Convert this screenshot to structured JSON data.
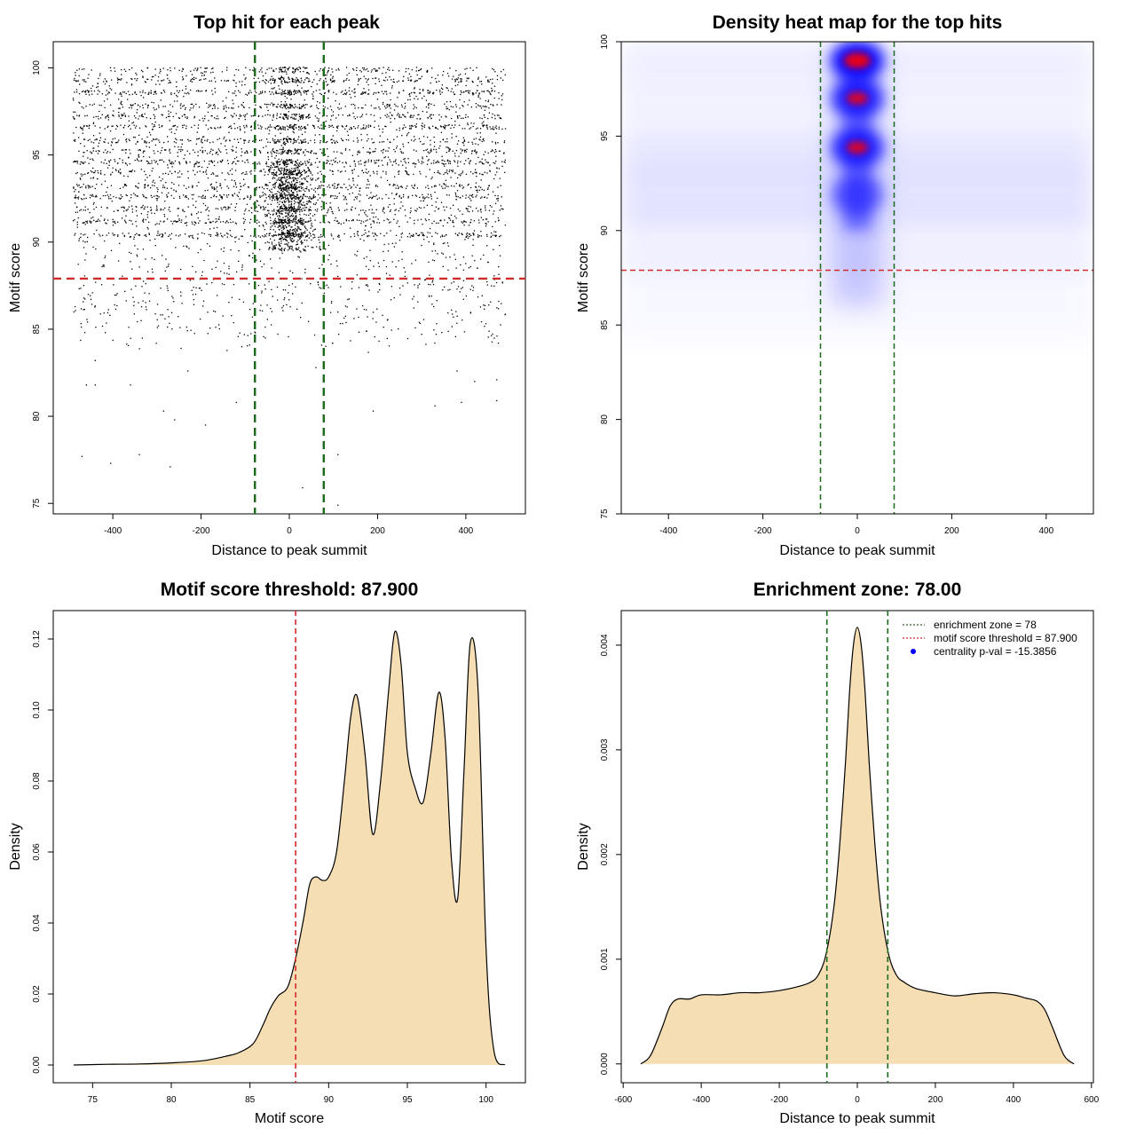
{
  "chart_data": [
    {
      "type": "scatter",
      "title": "Top hit for each peak",
      "xlabel": "Distance to peak summit",
      "ylabel": "Motif score",
      "xlim": [
        -535,
        535
      ],
      "ylim": [
        74.4,
        101.5
      ],
      "xticks": [
        -400,
        -200,
        0,
        200,
        400
      ],
      "yticks": [
        75,
        80,
        85,
        90,
        95,
        100
      ],
      "xtick_labels": [
        "-400",
        "-200",
        "0",
        "200",
        "400"
      ],
      "ytick_labels": [
        "75",
        "80",
        "85",
        "90",
        "95",
        "100"
      ],
      "score_levels": [
        99.9,
        99.3,
        98.6,
        97.8,
        97.2,
        96.6,
        95.8,
        95.2,
        94.6,
        94.0,
        93.2,
        92.6,
        91.9,
        91.2,
        90.4
      ],
      "density_peaks_x": 0,
      "x_range_points": [
        -490,
        490
      ],
      "sparse_points": [
        {
          "x": -470,
          "y": 77.7
        },
        {
          "x": -340,
          "y": 77.8
        },
        {
          "x": -405,
          "y": 77.3
        },
        {
          "x": -270,
          "y": 77.1
        },
        {
          "x": 30,
          "y": 75.9
        },
        {
          "x": 110,
          "y": 77.8
        },
        {
          "x": 110,
          "y": 74.9
        },
        {
          "x": -460,
          "y": 81.8
        },
        {
          "x": -440,
          "y": 81.8
        },
        {
          "x": -285,
          "y": 80.3
        },
        {
          "x": -260,
          "y": 79.8
        },
        {
          "x": -190,
          "y": 79.5
        },
        {
          "x": -120,
          "y": 80.8
        },
        {
          "x": 190,
          "y": 80.3
        },
        {
          "x": 330,
          "y": 80.6
        },
        {
          "x": 390,
          "y": 80.8
        },
        {
          "x": 470,
          "y": 80.9
        },
        {
          "x": -360,
          "y": 81.8
        },
        {
          "x": 420,
          "y": 82.0
        },
        {
          "x": 470,
          "y": 82.1
        },
        {
          "x": -440,
          "y": 83.2
        },
        {
          "x": 380,
          "y": 82.6
        },
        {
          "x": -230,
          "y": 82.6
        },
        {
          "x": 60,
          "y": 82.8
        }
      ],
      "hlines": [
        {
          "y": 87.9,
          "color": "#d22b2b"
        }
      ],
      "vlines": [
        {
          "x": -78,
          "color": "#1a6b1a"
        },
        {
          "x": 78,
          "color": "#1a6b1a"
        }
      ]
    },
    {
      "type": "heatmap",
      "title": "Density heat map for the top hits",
      "xlabel": "Distance to peak summit",
      "ylabel": "Motif score",
      "xlim": [
        -500,
        500
      ],
      "ylim": [
        75,
        100
      ],
      "xticks": [
        -400,
        -200,
        0,
        200,
        400
      ],
      "yticks": [
        75,
        80,
        85,
        90,
        95,
        100
      ],
      "xtick_labels": [
        "-400",
        "-200",
        "0",
        "200",
        "400"
      ],
      "ytick_labels": [
        "75",
        "80",
        "85",
        "90",
        "95",
        "100"
      ],
      "hotspots": [
        {
          "x": 0,
          "y": 99.0,
          "intensity": 1.0
        },
        {
          "x": 0,
          "y": 97.0,
          "intensity": 0.8
        },
        {
          "x": 0,
          "y": 94.4,
          "intensity": 0.8
        },
        {
          "x": 0,
          "y": 91.9,
          "intensity": 0.45
        }
      ],
      "colors": [
        "#ffffff",
        "#0000ff",
        "#ff0000"
      ],
      "hlines": [
        {
          "y": 87.9,
          "color": "#d22b2b"
        }
      ],
      "vlines": [
        {
          "x": -78,
          "color": "#1a6b1a"
        },
        {
          "x": 78,
          "color": "#1a6b1a"
        }
      ]
    },
    {
      "type": "area",
      "title": "Motif score threshold: 87.900",
      "xlabel": "Motif score",
      "ylabel": "Density",
      "xlim": [
        72.5,
        102.5
      ],
      "ylim": [
        -0.005,
        0.128
      ],
      "xticks": [
        75,
        80,
        85,
        90,
        95,
        100
      ],
      "yticks": [
        0.0,
        0.02,
        0.04,
        0.06,
        0.08,
        0.1,
        0.12
      ],
      "xtick_labels": [
        "75",
        "80",
        "85",
        "90",
        "95",
        "100"
      ],
      "ytick_labels": [
        "0.00",
        "0.02",
        "0.04",
        "0.06",
        "0.08",
        "0.10",
        "0.12"
      ],
      "x": [
        73.8,
        76,
        78,
        80,
        82,
        83.5,
        84.3,
        85.2,
        85.8,
        86.3,
        86.8,
        87.4,
        87.9,
        88.4,
        88.8,
        89.2,
        89.6,
        90.0,
        90.5,
        91.0,
        91.4,
        91.8,
        92.3,
        92.8,
        93.3,
        93.8,
        94.2,
        94.6,
        95.0,
        95.5,
        96.0,
        96.5,
        97.0,
        97.4,
        97.8,
        98.2,
        98.6,
        99.0,
        99.5,
        100.0,
        100.5,
        101.2
      ],
      "y": [
        0.0,
        0.0002,
        0.0003,
        0.0006,
        0.0012,
        0.0025,
        0.0035,
        0.006,
        0.011,
        0.016,
        0.0195,
        0.022,
        0.03,
        0.041,
        0.051,
        0.053,
        0.052,
        0.053,
        0.06,
        0.08,
        0.098,
        0.104,
        0.088,
        0.065,
        0.08,
        0.105,
        0.122,
        0.113,
        0.088,
        0.078,
        0.074,
        0.088,
        0.105,
        0.092,
        0.058,
        0.047,
        0.083,
        0.119,
        0.105,
        0.033,
        0.004,
        0.0
      ],
      "fill": "#f5deb3",
      "vlines": [
        {
          "x": 87.9,
          "color": "#d22b2b"
        }
      ]
    },
    {
      "type": "area",
      "title": "Enrichment zone: 78.00",
      "xlabel": "Distance to peak summit",
      "ylabel": "Density",
      "xlim": [
        -605,
        605
      ],
      "ylim": [
        -0.00018,
        0.00433
      ],
      "xticks": [
        -600,
        -400,
        -200,
        0,
        200,
        400,
        600
      ],
      "yticks": [
        0.0,
        0.001,
        0.002,
        0.003,
        0.004
      ],
      "xtick_labels": [
        "-600",
        "-400",
        "-200",
        "0",
        "200",
        "400",
        "600"
      ],
      "ytick_labels": [
        "0.000",
        "0.001",
        "0.002",
        "0.003",
        "0.004"
      ],
      "x": [
        -555,
        -530,
        -500,
        -480,
        -460,
        -430,
        -400,
        -350,
        -300,
        -250,
        -200,
        -150,
        -120,
        -100,
        -80,
        -60,
        -45,
        -30,
        -20,
        -10,
        0,
        10,
        20,
        30,
        45,
        60,
        80,
        100,
        120,
        150,
        200,
        250,
        300,
        350,
        400,
        430,
        460,
        480,
        500,
        530,
        555
      ],
      "y": [
        0.0,
        8e-05,
        0.00035,
        0.00055,
        0.00062,
        0.00062,
        0.00066,
        0.00066,
        0.00068,
        0.00068,
        0.0007,
        0.00074,
        0.00078,
        0.00085,
        0.00105,
        0.0015,
        0.0021,
        0.0029,
        0.00355,
        0.004,
        0.00417,
        0.004,
        0.00355,
        0.0029,
        0.0021,
        0.0015,
        0.00105,
        0.00085,
        0.00078,
        0.00072,
        0.00068,
        0.00065,
        0.00067,
        0.00068,
        0.00066,
        0.00063,
        0.0006,
        0.00052,
        0.00035,
        8e-05,
        0.0
      ],
      "fill": "#f5deb3",
      "vlines": [
        {
          "x": -78,
          "color": "#1a6b1a"
        },
        {
          "x": 78,
          "color": "#1a6b1a"
        }
      ],
      "legend": {
        "position": "top-right",
        "entries": [
          {
            "label": "enrichment zone = 78",
            "color": "#1a6b1a",
            "kind": "dotted-line"
          },
          {
            "label": "motif score threshold = 87.900",
            "color": "#d22b2b",
            "kind": "dotted-line"
          },
          {
            "label": "centrality p-val = -15.3856",
            "color": "#0000ff",
            "kind": "point"
          }
        ]
      }
    }
  ]
}
